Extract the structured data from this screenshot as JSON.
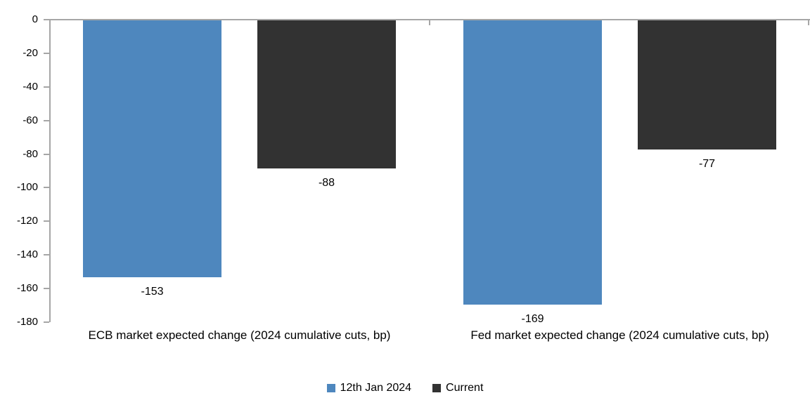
{
  "chart_data": {
    "type": "bar",
    "title": "",
    "xlabel": "",
    "ylabel": "",
    "categories": [
      "ECB market expected change (2024 cumulative cuts, bp)",
      "Fed market expected change (2024 cumulative cuts, bp)"
    ],
    "series": [
      {
        "name": "12th Jan 2024",
        "color": "#4E87BE",
        "values": [
          -153,
          -169
        ]
      },
      {
        "name": "Current",
        "color": "#323232",
        "values": [
          -88,
          -77
        ]
      }
    ],
    "data_labels": {
      "ecb_12jan": "-153",
      "ecb_current": "-88",
      "fed_12jan": "-169",
      "fed_current": "-77"
    },
    "ylim": [
      -180,
      0
    ],
    "ytick_step": 20,
    "yticks": [
      "0",
      "-20",
      "-40",
      "-60",
      "-80",
      "-100",
      "-120",
      "-140",
      "-160",
      "-180"
    ],
    "grid": false,
    "legend_position": "bottom",
    "axis_color": "#A6A6A6",
    "text_color": "#000000",
    "background_color": "#FFFFFF"
  }
}
